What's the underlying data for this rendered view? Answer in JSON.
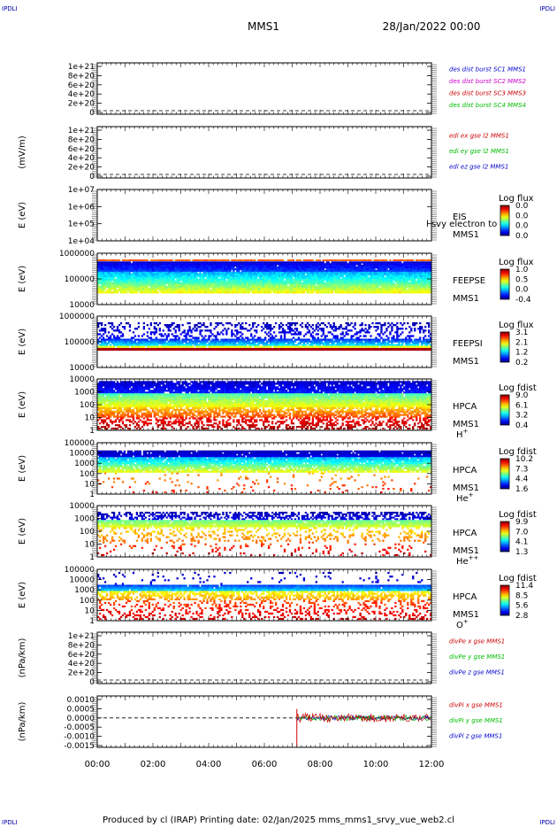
{
  "header": {
    "corner_label": "IPDLI",
    "mission": "MMS1",
    "date": "28/Jan/2022 00:00"
  },
  "footer": {
    "text": "Produced by cl (IRAP)   Printing date: 02/Jan/2025   mms_mms1_srvy_vue_web2.cl"
  },
  "time_axis": {
    "ticks": [
      "00:00",
      "02:00",
      "04:00",
      "06:00",
      "08:00",
      "10:00",
      "12:00"
    ]
  },
  "chart_data": [
    {
      "type": "line",
      "ylabel": "",
      "yticks": [
        "1e+21",
        "8e+20",
        "6e+20",
        "4e+20",
        "2e+20",
        "0"
      ],
      "series": [
        {
          "name": "des dist burst SC1 MMS1",
          "color": "#0000cc"
        },
        {
          "name": "des dist burst SC2 MMS2",
          "color": "#cc00cc"
        },
        {
          "name": "des dist burst SC3 MMS3",
          "color": "#cc0000"
        },
        {
          "name": "des dist burst SC4 MMS4",
          "color": "#00bb00"
        }
      ]
    },
    {
      "type": "line",
      "ylabel": "(mV/m)",
      "yticks": [
        "1e+21",
        "8e+20",
        "6e+20",
        "4e+20",
        "2e+20",
        "0"
      ],
      "series": [
        {
          "name": "edi ex gse l2 MMS1",
          "color": "#cc0000"
        },
        {
          "name": "edi ey gse l2 MMS1",
          "color": "#00bb00"
        },
        {
          "name": "edi ez gse l2 MMS1",
          "color": "#0000cc"
        }
      ]
    },
    {
      "type": "heatmap",
      "ylabel": "E (eV)",
      "yticks": [
        "1e+07",
        "1e+06",
        "1e+05",
        "1e+04"
      ],
      "instrument": "EIS",
      "overlay_text": "l svy electron to",
      "spacecraft": "MMS1",
      "colorbar": {
        "title": "Log flux",
        "labels": [
          "0.0",
          "0.0",
          "0.0",
          "0.0"
        ]
      }
    },
    {
      "type": "heatmap",
      "ylabel": "E (eV)",
      "yticks": [
        "1000000",
        "100000",
        "10000"
      ],
      "instrument": "FEEPSE",
      "spacecraft": "MMS1",
      "colorbar": {
        "title": "Log flux",
        "labels": [
          "1.0",
          "0.5",
          "0.0",
          "-0.4"
        ]
      }
    },
    {
      "type": "heatmap",
      "ylabel": "E (eV)",
      "yticks": [
        "1000000",
        "100000",
        "10000"
      ],
      "instrument": "FEEPSI",
      "spacecraft": "MMS1",
      "colorbar": {
        "title": "Log flux",
        "labels": [
          "3.1",
          "2.1",
          "1.2",
          "0.2"
        ]
      }
    },
    {
      "type": "heatmap",
      "ylabel": "E (eV)",
      "yticks": [
        "10000",
        "1000",
        "100",
        "10",
        "1"
      ],
      "instrument": "HPCA",
      "spacecraft": "MMS1",
      "species": "H",
      "species_sup": "+",
      "colorbar": {
        "title": "Log fdist",
        "labels": [
          "9.0",
          "6.1",
          "3.2",
          "0.4"
        ]
      }
    },
    {
      "type": "heatmap",
      "ylabel": "E (eV)",
      "yticks": [
        "100000",
        "10000",
        "1000",
        "100",
        "10",
        "1"
      ],
      "instrument": "HPCA",
      "spacecraft": "MMS1",
      "species": "He",
      "species_sup": "+",
      "colorbar": {
        "title": "Log fdist",
        "labels": [
          "10.2",
          "7.3",
          "4.4",
          "1.6"
        ]
      }
    },
    {
      "type": "heatmap",
      "ylabel": "E (eV)",
      "yticks": [
        "10000",
        "1000",
        "100",
        "10",
        "1"
      ],
      "instrument": "HPCA",
      "spacecraft": "MMS1",
      "species": "He",
      "species_sup": "++",
      "colorbar": {
        "title": "Log fdist",
        "labels": [
          "9.9",
          "7.0",
          "4.1",
          "1.3"
        ]
      }
    },
    {
      "type": "heatmap",
      "ylabel": "E (eV)",
      "yticks": [
        "100000",
        "10000",
        "1000",
        "100",
        "10",
        "1"
      ],
      "instrument": "HPCA",
      "spacecraft": "MMS1",
      "species": "O",
      "species_sup": "+",
      "colorbar": {
        "title": "Log fdist",
        "labels": [
          "11.4",
          "8.5",
          "5.6",
          "2.8"
        ]
      }
    },
    {
      "type": "line",
      "ylabel": "(nPa/km)",
      "yticks": [
        "1e+21",
        "8e+20",
        "6e+20",
        "4e+20",
        "2e+20",
        "0"
      ],
      "series": [
        {
          "name": "divPe x gse MMS1",
          "color": "#cc0000"
        },
        {
          "name": "divPe y gse MMS1",
          "color": "#00bb00"
        },
        {
          "name": "divPe z gse MMS1",
          "color": "#0000cc"
        }
      ]
    },
    {
      "type": "line",
      "ylabel": "(nPa/km)",
      "yticks": [
        "0.0010",
        "0.0005",
        "0.0000",
        "-0.0005",
        "-0.0010",
        "-0.0015"
      ],
      "data_start_time": "07:10",
      "series": [
        {
          "name": "divPi x gse MMS1",
          "color": "#cc0000"
        },
        {
          "name": "divPi y gse MMS1",
          "color": "#00bb00"
        },
        {
          "name": "divPi z gse MMS1",
          "color": "#0000cc"
        }
      ]
    }
  ]
}
